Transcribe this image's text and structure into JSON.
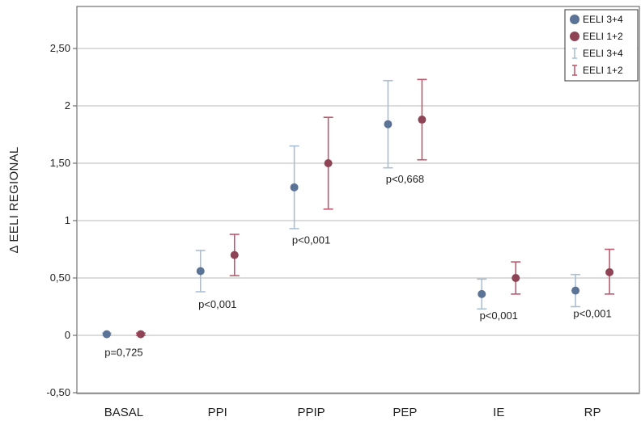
{
  "chart_data": {
    "type": "errorbar",
    "ylabel": "Δ EELI REGIONAL",
    "xlabel": "",
    "ylim": [
      -0.5,
      2.8
    ],
    "y_ticks": [
      -0.5,
      0,
      0.5,
      1,
      1.5,
      2,
      2.5
    ],
    "y_tick_labels": [
      "-0,50",
      "0",
      "0,50",
      "1",
      "1,50",
      "2",
      "2,50"
    ],
    "grid": true,
    "legend_position": "top-right",
    "categories": [
      "BASAL",
      "PPI",
      "PPIP",
      "PEP",
      "IE",
      "RP"
    ],
    "series": [
      {
        "name": "EELI 3+4",
        "color": "#5b7397",
        "bar_color": "#a9bfd6",
        "mean": [
          0.01,
          0.56,
          1.29,
          1.84,
          0.36,
          0.39
        ],
        "lower": [
          0.0,
          0.38,
          0.93,
          1.46,
          0.23,
          0.25
        ],
        "upper": [
          0.02,
          0.74,
          1.65,
          2.22,
          0.49,
          0.53
        ]
      },
      {
        "name": "EELI 1+2",
        "color": "#8e4454",
        "bar_color": "#bf5a6e",
        "mean": [
          0.01,
          0.7,
          1.5,
          1.88,
          0.5,
          0.55
        ],
        "lower": [
          0.0,
          0.52,
          1.1,
          1.53,
          0.36,
          0.36
        ],
        "upper": [
          0.02,
          0.88,
          1.9,
          2.23,
          0.64,
          0.75
        ]
      }
    ],
    "annotations": [
      {
        "category": "BASAL",
        "text": "p=0,725",
        "y": -0.18
      },
      {
        "category": "PPI",
        "text": "p<0,001",
        "y": 0.24
      },
      {
        "category": "PPIP",
        "text": "p<0,001",
        "y": 0.8
      },
      {
        "category": "PEP",
        "text": "p<0,668",
        "y": 1.33
      },
      {
        "category": "IE",
        "text": "p<0,001",
        "y": 0.14
      },
      {
        "category": "RP",
        "text": "p<0,001",
        "y": 0.16
      }
    ],
    "legend": [
      {
        "label": "EELI 3+4",
        "kind": "point",
        "series": 0
      },
      {
        "label": "EELI 1+2",
        "kind": "point",
        "series": 1
      },
      {
        "label": "EELI 3+4",
        "kind": "errorbar",
        "series": 0
      },
      {
        "label": "EELI 1+2",
        "kind": "errorbar",
        "series": 1
      }
    ]
  }
}
